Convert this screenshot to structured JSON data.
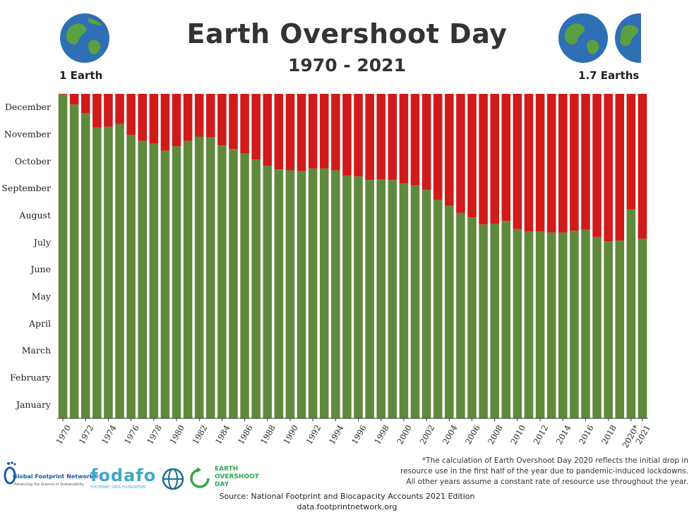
{
  "header": {
    "title": "Earth Overshoot Day",
    "subtitle": "1970 - 2021",
    "left_label": "1 Earth",
    "right_label": "1.7 Earths"
  },
  "footer": {
    "note_lines": [
      "*The calculation of Earth Overshoot Day 2020 reflects the initial drop in",
      "resource use in the first half of the year due to pandemic-induced lockdowns.",
      "All other years assume a constant rate of resource use throughout the year."
    ],
    "source": "Source: National Footprint and Biocapacity Accounts 2021 Edition",
    "url": "data.footprintnetwork.org",
    "logos": {
      "gfn_name": "Global Footprint Network®",
      "gfn_tagline": "Advancing the Science of Sustainability",
      "fodafo_name": "fodafo",
      "fodafo_tagline": "FOOTPRINT DATA FOUNDATION",
      "eod_line1": "EARTH",
      "eod_line2": "OVERSHOOT",
      "eod_line3": "DAY"
    }
  },
  "colors": {
    "overshoot_fill": "#5f8a3c",
    "remaining_fill": "#d11a1a",
    "axis": "#333333",
    "grid": "#bbbbbb"
  },
  "chart_data": {
    "type": "bar",
    "ylim": [
      0,
      365
    ],
    "y_tick_labels": [
      "January",
      "February",
      "March",
      "April",
      "May",
      "June",
      "July",
      "August",
      "September",
      "October",
      "November",
      "December"
    ],
    "x_tick_labels": [
      "1970",
      "1972",
      "1974",
      "1976",
      "1978",
      "1980",
      "1982",
      "1984",
      "1986",
      "1988",
      "1990",
      "1992",
      "1994",
      "1996",
      "1998",
      "2000",
      "2002",
      "2004",
      "2006",
      "2008",
      "2010",
      "2012",
      "2014",
      "2016",
      "2018",
      "2020*",
      "2021"
    ],
    "categories": [
      "1970",
      "1971",
      "1972",
      "1973",
      "1974",
      "1975",
      "1976",
      "1977",
      "1978",
      "1979",
      "1980",
      "1981",
      "1982",
      "1983",
      "1984",
      "1985",
      "1986",
      "1987",
      "1988",
      "1989",
      "1990",
      "1991",
      "1992",
      "1993",
      "1994",
      "1995",
      "1996",
      "1997",
      "1998",
      "1999",
      "2000",
      "2001",
      "2002",
      "2003",
      "2004",
      "2005",
      "2006",
      "2007",
      "2008",
      "2009",
      "2010",
      "2011",
      "2012",
      "2013",
      "2014",
      "2015",
      "2016",
      "2017",
      "2018",
      "2019",
      "2020",
      "2021"
    ],
    "series": [
      {
        "values": [
          364,
          353,
          343,
          327,
          328,
          331,
          319,
          312,
          309,
          301,
          306,
          312,
          317,
          316,
          307,
          303,
          298,
          291,
          284,
          280,
          279,
          278,
          281,
          281,
          279,
          273,
          272,
          268,
          269,
          268,
          264,
          262,
          257,
          246,
          239,
          231,
          226,
          218,
          219,
          222,
          213,
          210,
          210,
          209,
          209,
          211,
          212,
          204,
          199,
          200,
          235,
          202
        ]
      }
    ]
  }
}
